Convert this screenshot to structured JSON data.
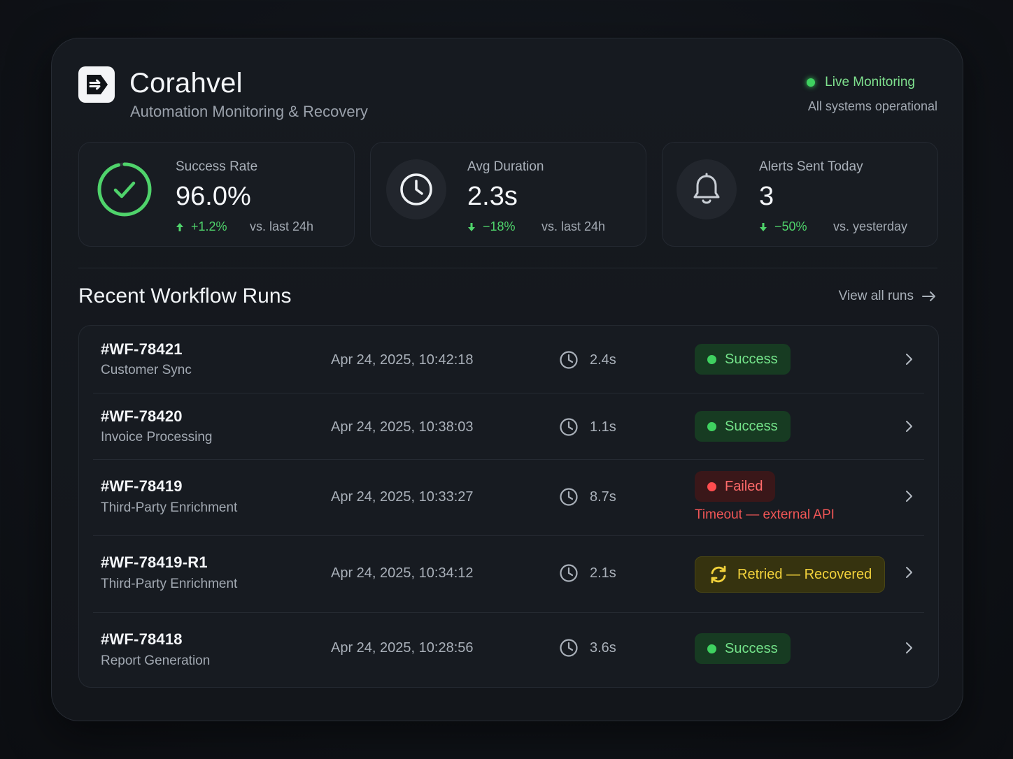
{
  "brand": {
    "title": "Corahvel",
    "subtitle": "Automation Monitoring & Recovery"
  },
  "status": {
    "live_label": "Live Monitoring",
    "live_sub": "All systems operational"
  },
  "stats": [
    {
      "label": "Success Rate",
      "value": "96.0%",
      "delta": "+1.2%",
      "direction": "up",
      "compare": "vs. last 24h",
      "icon": "success-ring-icon"
    },
    {
      "label": "Avg Duration",
      "value": "2.3s",
      "delta": "−18%",
      "direction": "down",
      "compare": "vs. last 24h",
      "icon": "clock-icon"
    },
    {
      "label": "Alerts Sent Today",
      "value": "3",
      "delta": "−50%",
      "direction": "down",
      "compare": "vs. yesterday",
      "icon": "bell-icon"
    }
  ],
  "runs_section": {
    "title": "Recent Workflow Runs",
    "view_all": "View all runs"
  },
  "runs": [
    {
      "id": "#WF-78421",
      "name": "Customer Sync",
      "time": "Apr 24, 2025, 10:42:18",
      "duration": "2.4s",
      "status": "Success",
      "status_type": "success",
      "note": ""
    },
    {
      "id": "#WF-78420",
      "name": "Invoice Processing",
      "time": "Apr 24, 2025, 10:38:03",
      "duration": "1.1s",
      "status": "Success",
      "status_type": "success",
      "note": ""
    },
    {
      "id": "#WF-78419",
      "name": "Third-Party Enrichment",
      "time": "Apr 24, 2025, 10:33:27",
      "duration": "8.7s",
      "status": "Failed",
      "status_type": "failed",
      "note": "Timeout — external API"
    },
    {
      "id": "#WF-78419-R1",
      "name": "Third-Party Enrichment",
      "time": "Apr 24, 2025, 10:34:12",
      "duration": "2.1s",
      "status": "Retried — Recovered",
      "status_type": "retried",
      "note": ""
    },
    {
      "id": "#WF-78418",
      "name": "Report Generation",
      "time": "Apr 24, 2025, 10:28:56",
      "duration": "3.6s",
      "status": "Success",
      "status_type": "success",
      "note": ""
    }
  ],
  "colors": {
    "success": "#3fd160",
    "failed": "#ff4d4f",
    "retried": "#f2d23b",
    "background": "#13161b"
  }
}
